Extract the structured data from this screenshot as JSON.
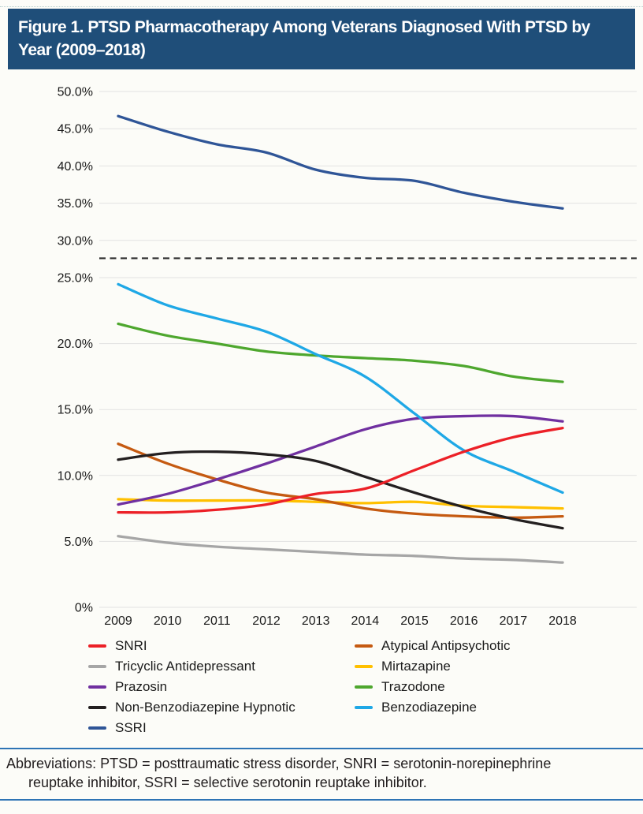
{
  "page": {
    "title_line1": "Figure 1. PTSD Pharmacotherapy Among Veterans Diagnosed With PTSD by",
    "title_line2": "Year (2009–2018)",
    "footer_abbreviations": "Abbreviations: PTSD = posttraumatic stress disorder, SNRI = serotonin-norepinephrine reuptake inhibitor, SSRI = selective serotonin reuptake inhibitor.",
    "colors": {
      "title_bar_bg": "#1F4E79",
      "title_text": "#FFFFFF",
      "footer_rule": "#2E74B5",
      "gridline": "#E2E2E2",
      "axis_text": "#1A1A1A"
    }
  },
  "legend": {
    "items": [
      {
        "label": "SNRI",
        "color": "#EC2027"
      },
      {
        "label": "Atypical Antipsychotic",
        "color": "#C55A11"
      },
      {
        "label": "Tricyclic Antidepressant",
        "color": "#A6A6A6"
      },
      {
        "label": "Mirtazapine",
        "color": "#FFC000"
      },
      {
        "label": "Prazosin",
        "color": "#7030A0"
      },
      {
        "label": "Trazodone",
        "color": "#4EA72E"
      },
      {
        "label": "Non-Benzodiazepine Hypnotic",
        "color": "#231F20"
      },
      {
        "label": "Benzodiazepine",
        "color": "#1FA8E6"
      },
      {
        "label": "SSRI",
        "color": "#2F5597"
      }
    ]
  },
  "chart_data": {
    "type": "line",
    "title": "PTSD Pharmacotherapy Among Veterans Diagnosed With PTSD by Year (2009–2018)",
    "xlabel": "",
    "ylabel": "",
    "x": [
      2009,
      2010,
      2011,
      2012,
      2013,
      2014,
      2015,
      2016,
      2017,
      2018
    ],
    "y_axis": {
      "ticks": [
        {
          "label": "50.0%",
          "value": 50
        },
        {
          "label": "45.0%",
          "value": 45
        },
        {
          "label": "40.0%",
          "value": 40
        },
        {
          "label": "35.0%",
          "value": 35
        },
        {
          "label": "30.0%",
          "value": 30
        },
        {
          "label": "25.0%",
          "value": 25
        },
        {
          "label": "20.0%",
          "value": 20
        },
        {
          "label": "15.0%",
          "value": 15
        },
        {
          "label": "10.0%",
          "value": 10
        },
        {
          "label": "5.0%",
          "value": 5
        },
        {
          "label": "0%",
          "value": 0
        }
      ],
      "note": "Axis spacing is non-linear in source figure: 0–25% region is expanded (~1.8x) relative to 25–50% region"
    },
    "grid": true,
    "legend_position": "bottom",
    "reference_line": {
      "value": 27.6,
      "style": "dashed",
      "color": "#2B2B2B"
    },
    "series": [
      {
        "name": "Tricyclic Antidepressant",
        "color": "#A6A6A6",
        "values": [
          5.4,
          4.9,
          4.6,
          4.4,
          4.2,
          4.0,
          3.9,
          3.7,
          3.6,
          3.4
        ]
      },
      {
        "name": "Mirtazapine",
        "color": "#FFC000",
        "values": [
          8.2,
          8.1,
          8.1,
          8.1,
          8.0,
          7.9,
          8.0,
          7.7,
          7.6,
          7.5
        ]
      },
      {
        "name": "Atypical Antipsychotic",
        "color": "#C55A11",
        "values": [
          12.4,
          10.9,
          9.7,
          8.7,
          8.2,
          7.5,
          7.1,
          6.9,
          6.8,
          6.9
        ]
      },
      {
        "name": "Trazodone",
        "color": "#4EA72E",
        "values": [
          21.5,
          20.6,
          20.0,
          19.4,
          19.1,
          18.9,
          18.7,
          18.3,
          17.5,
          17.1
        ]
      },
      {
        "name": "Prazosin",
        "color": "#7030A0",
        "values": [
          7.8,
          8.6,
          9.7,
          10.9,
          12.2,
          13.5,
          14.3,
          14.5,
          14.5,
          14.1
        ]
      },
      {
        "name": "Non-Benzodiazepine Hypnotic",
        "color": "#231F20",
        "values": [
          11.2,
          11.7,
          11.8,
          11.6,
          11.1,
          9.9,
          8.7,
          7.6,
          6.7,
          6.0
        ]
      },
      {
        "name": "Benzodiazepine",
        "color": "#1FA8E6",
        "values": [
          24.5,
          22.9,
          21.9,
          20.9,
          19.2,
          17.5,
          14.7,
          11.9,
          10.3,
          8.7
        ]
      },
      {
        "name": "SSRI",
        "color": "#2F5597",
        "values": [
          46.7,
          44.6,
          42.9,
          41.8,
          39.5,
          38.4,
          38.0,
          36.4,
          35.2,
          34.3
        ]
      },
      {
        "name": "SNRI",
        "color": "#EC2027",
        "values": [
          7.2,
          7.2,
          7.4,
          7.8,
          8.6,
          9.0,
          10.4,
          11.8,
          12.9,
          13.6
        ]
      }
    ]
  }
}
